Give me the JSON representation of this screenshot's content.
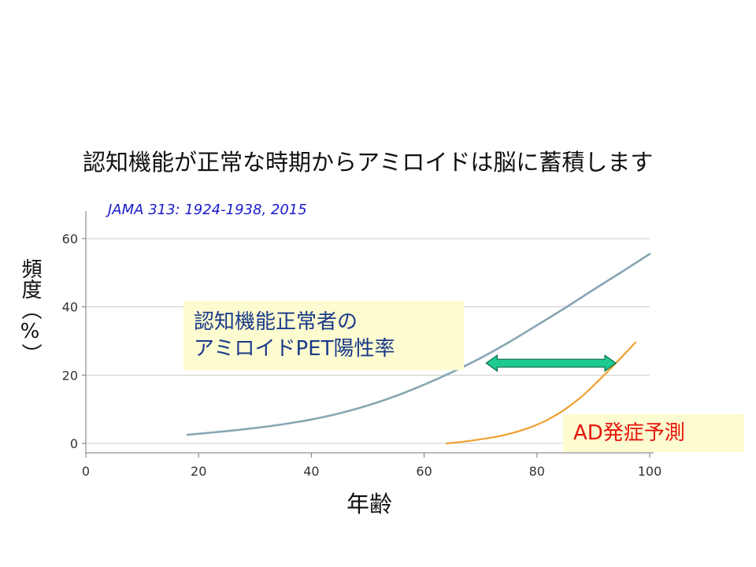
{
  "title": "認知機能が正常な時期からアミロイドは脳に蓄積します",
  "citation": "JAMA 313: 1924-1938, 2015",
  "annotations": {
    "box1_line1": "認知機能正常者の",
    "box1_line2": "アミロイドPET陽性率",
    "box2": "AD発症予測"
  },
  "colors": {
    "grid": "#cccccc",
    "axis": "#777777",
    "amyloid_curve": "#87a6b3",
    "ad_curve": "#f0a030",
    "arrow_fill": "#1dcb92",
    "arrow_stroke": "#0e6b4e"
  },
  "chart_data": {
    "type": "line",
    "title": "",
    "xlabel": "年齢",
    "ylabel": "頻度（%）",
    "xlim": [
      0,
      100
    ],
    "ylim": [
      0,
      60
    ],
    "x_ticks": [
      0,
      20,
      40,
      60,
      80,
      100
    ],
    "y_ticks": [
      0,
      20,
      40,
      60
    ],
    "grid": true,
    "series": [
      {
        "key": "amyloid",
        "x": [
          18,
          25,
          30,
          35,
          40,
          45,
          50,
          55,
          60,
          65,
          70,
          75,
          80,
          85,
          90,
          95,
          100
        ],
        "y": [
          2.5,
          3.6,
          4.5,
          5.6,
          7.0,
          8.8,
          11.1,
          13.9,
          17.2,
          20.9,
          25.0,
          29.6,
          34.6,
          39.7,
          45.0,
          50.2,
          55.5
        ]
      },
      {
        "key": "ad",
        "x": [
          64,
          67,
          70,
          73,
          76,
          79,
          82,
          85,
          88,
          91,
          94,
          97.5
        ],
        "y": [
          0,
          0.5,
          1.2,
          2.0,
          3.2,
          4.8,
          7.0,
          10.0,
          13.8,
          18.5,
          23.5,
          29.6
        ]
      }
    ],
    "double_arrow": {
      "x_start": 71,
      "x_end": 94,
      "y": 23.5
    }
  }
}
